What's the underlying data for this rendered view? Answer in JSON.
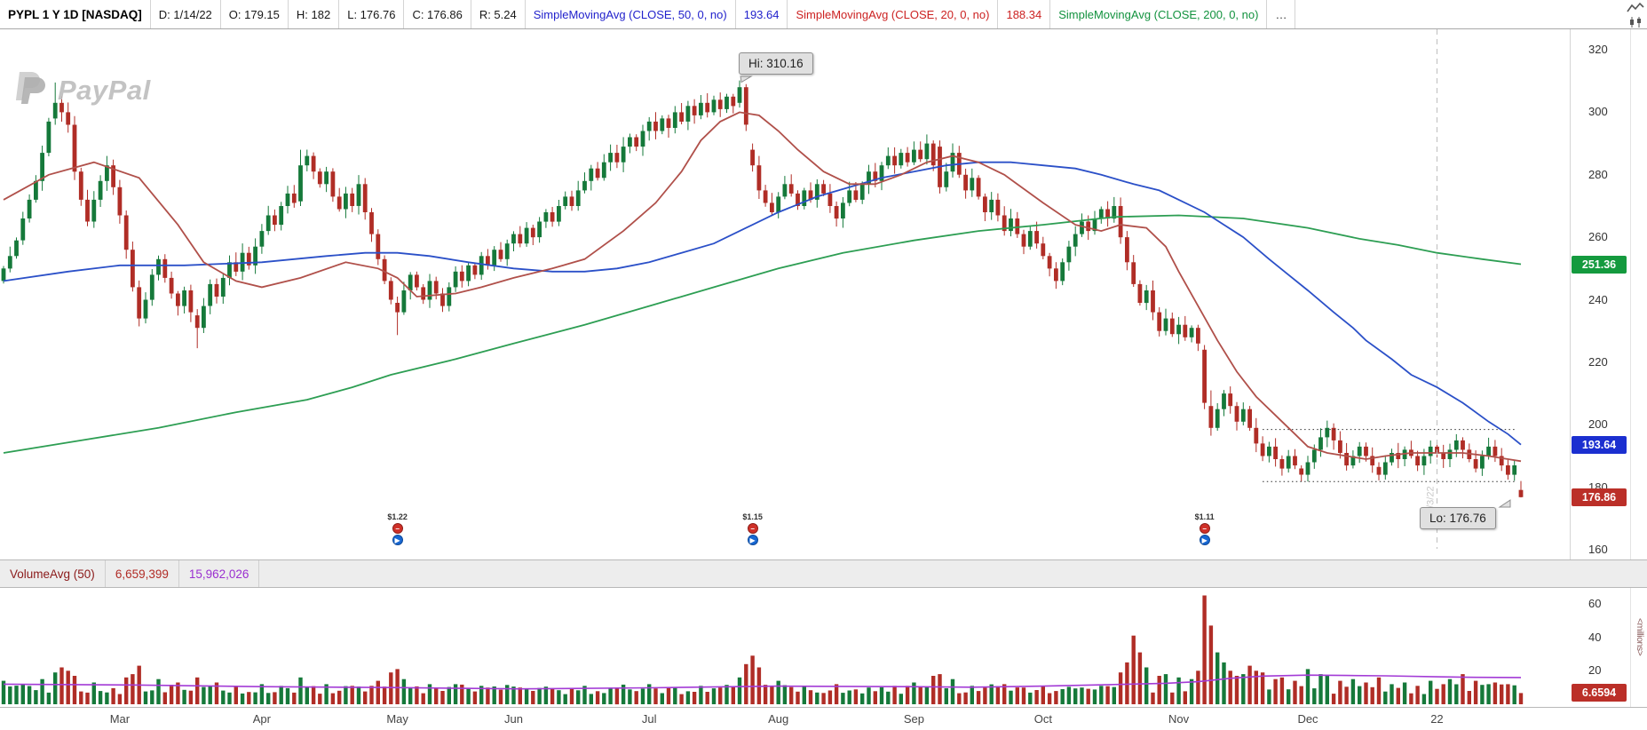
{
  "toolbar": {
    "items": [
      {
        "label": "PYPL 1 Y 1D [NASDAQ]",
        "color": "#000000",
        "bold": true
      },
      {
        "label": "D: 1/14/22",
        "color": "#181818"
      },
      {
        "label": "O: 179.15",
        "color": "#181818"
      },
      {
        "label": "H: 182",
        "color": "#181818"
      },
      {
        "label": "L: 176.76",
        "color": "#181818"
      },
      {
        "label": "C: 176.86",
        "color": "#181818"
      },
      {
        "label": "R: 5.24",
        "color": "#181818"
      },
      {
        "label": "SimpleMovingAvg (CLOSE, 50, 0, no)",
        "color": "#2222cc"
      },
      {
        "label": "193.64",
        "color": "#2222cc"
      },
      {
        "label": "SimpleMovingAvg (CLOSE, 20, 0, no)",
        "color": "#cc2222"
      },
      {
        "label": "188.34",
        "color": "#cc2222"
      },
      {
        "label": "SimpleMovingAvg (CLOSE, 200, 0, no)",
        "color": "#12923e"
      },
      {
        "label": "…",
        "color": "#333333"
      }
    ]
  },
  "watermark": {
    "text": "PayPal"
  },
  "chart_data": {
    "type": "candlestick",
    "symbol": "PYPL",
    "timeframe": "1 Y 1D",
    "exchange": "NASDAQ",
    "last": {
      "date": "1/14/22",
      "open": 179.15,
      "high": 182,
      "low": 176.76,
      "close": 176.86,
      "range": 5.24
    },
    "price_axis": {
      "ticks": [
        320,
        300,
        280,
        260,
        240,
        220,
        200,
        180,
        160
      ]
    },
    "x_axis": {
      "months": [
        {
          "label": "Mar",
          "day": 18
        },
        {
          "label": "Apr",
          "day": 40
        },
        {
          "label": "May",
          "day": 61
        },
        {
          "label": "Jun",
          "day": 79
        },
        {
          "label": "Jul",
          "day": 100
        },
        {
          "label": "Aug",
          "day": 120
        },
        {
          "label": "Sep",
          "day": 141
        },
        {
          "label": "Oct",
          "day": 161
        },
        {
          "label": "Nov",
          "day": 182
        },
        {
          "label": "Dec",
          "day": 202
        },
        {
          "label": "22",
          "day": 222
        }
      ]
    },
    "hi_annotation": {
      "label": "Hi: 310.16",
      "day": 114,
      "price": 310.16
    },
    "lo_annotation": {
      "label": "Lo: 176.76",
      "day": 235,
      "price": 176.76
    },
    "closes": [
      250,
      254,
      259,
      266,
      272,
      278,
      287,
      297,
      303,
      300,
      296,
      281,
      272,
      265,
      272,
      278,
      283,
      276,
      267,
      256,
      244,
      234,
      240,
      248,
      253,
      247,
      242,
      238,
      243,
      236,
      231,
      238,
      245,
      241,
      247,
      252,
      249,
      255,
      251,
      257,
      262,
      267,
      264,
      270,
      274,
      271,
      283,
      286,
      281,
      277,
      281,
      273,
      269,
      274,
      270,
      277,
      268,
      261,
      253,
      246,
      240,
      236,
      243,
      248,
      244,
      240,
      246,
      242,
      238,
      244,
      249,
      246,
      251,
      248,
      254,
      251,
      256,
      253,
      258,
      261,
      258,
      263,
      260,
      265,
      268,
      265,
      270,
      273,
      270,
      275,
      278,
      282,
      279,
      284,
      287,
      284,
      289,
      292,
      289,
      294,
      297,
      294,
      298,
      295,
      300,
      297,
      302,
      299,
      303,
      300,
      304,
      301,
      305,
      302,
      308,
      296,
      283,
      275,
      271,
      268,
      273,
      277,
      274,
      270,
      275,
      272,
      277,
      274,
      270,
      266,
      271,
      275,
      272,
      277,
      281,
      278,
      283,
      286,
      283,
      287,
      284,
      288,
      285,
      290,
      283,
      276,
      281,
      287,
      280,
      275,
      279,
      273,
      268,
      272,
      267,
      262,
      266,
      261,
      257,
      262,
      258,
      254,
      250,
      246,
      252,
      257,
      261,
      265,
      262,
      266,
      269,
      266,
      270,
      260,
      252,
      245,
      239,
      243,
      236,
      230,
      234,
      229,
      232,
      228,
      231,
      226,
      207,
      199,
      205,
      210,
      206,
      201,
      205,
      199,
      194,
      190,
      193,
      189,
      186,
      190,
      187,
      184,
      188,
      192,
      196,
      199,
      195,
      191,
      187,
      190,
      193,
      190,
      187,
      184,
      188,
      191,
      189,
      192,
      190,
      187,
      190,
      193,
      191,
      189,
      192,
      195,
      192,
      189,
      186,
      190,
      193,
      190,
      187,
      184,
      187,
      176.86
    ],
    "special_candles": {
      "8": [
        298,
        309.5,
        296,
        303
      ],
      "30": [
        235,
        237,
        224.5,
        231
      ],
      "46": [
        271.5,
        288,
        270,
        283
      ],
      "61": [
        239,
        241,
        228.7,
        236
      ],
      "114": [
        303,
        310.16,
        301.5,
        308
      ],
      "115": [
        308,
        309,
        294,
        296
      ],
      "116": [
        288,
        290,
        281,
        283
      ],
      "145": [
        289,
        291,
        274,
        276
      ],
      "186": [
        224,
        225.5,
        205,
        207
      ],
      "187": [
        206,
        211,
        196.5,
        199
      ],
      "201": [
        186,
        187,
        181.8,
        184
      ],
      "213": [
        186.5,
        188,
        182.2,
        184
      ],
      "235": [
        179.15,
        182,
        176.76,
        176.86
      ]
    },
    "overlays": [
      {
        "name": "SMA200",
        "color": "#2d9e53",
        "value": 251.36,
        "points": [
          [
            0,
            191
          ],
          [
            12,
            195
          ],
          [
            24,
            199
          ],
          [
            36,
            204
          ],
          [
            47,
            208
          ],
          [
            54,
            212
          ],
          [
            60,
            216
          ],
          [
            70,
            221
          ],
          [
            79,
            226
          ],
          [
            90,
            232
          ],
          [
            100,
            238
          ],
          [
            110,
            244
          ],
          [
            120,
            250
          ],
          [
            130,
            255
          ],
          [
            141,
            259
          ],
          [
            151,
            262
          ],
          [
            161,
            264
          ],
          [
            172,
            266.5
          ],
          [
            182,
            267
          ],
          [
            192,
            266
          ],
          [
            202,
            263
          ],
          [
            210,
            259.5
          ],
          [
            216,
            257.5
          ],
          [
            222,
            255
          ],
          [
            229,
            253
          ],
          [
            235,
            251.36
          ]
        ]
      },
      {
        "name": "SMA50",
        "color": "#2b50c8",
        "value": 193.64,
        "points": [
          [
            0,
            246
          ],
          [
            10,
            249
          ],
          [
            18,
            251
          ],
          [
            28,
            251
          ],
          [
            40,
            252
          ],
          [
            50,
            254
          ],
          [
            56,
            255
          ],
          [
            61,
            255
          ],
          [
            66,
            254
          ],
          [
            72,
            252
          ],
          [
            79,
            250
          ],
          [
            85,
            249
          ],
          [
            90,
            249
          ],
          [
            95,
            250
          ],
          [
            100,
            252
          ],
          [
            105,
            255
          ],
          [
            110,
            258
          ],
          [
            115,
            263
          ],
          [
            120,
            268
          ],
          [
            126,
            273
          ],
          [
            131,
            276
          ],
          [
            136,
            279
          ],
          [
            141,
            281
          ],
          [
            146,
            283
          ],
          [
            151,
            284
          ],
          [
            156,
            284
          ],
          [
            161,
            283
          ],
          [
            166,
            282
          ],
          [
            170,
            280
          ],
          [
            175,
            277
          ],
          [
            179,
            275
          ],
          [
            182,
            272
          ],
          [
            186,
            268
          ],
          [
            189,
            264
          ],
          [
            192,
            260
          ],
          [
            196,
            253
          ],
          [
            199,
            248
          ],
          [
            202,
            243
          ],
          [
            206,
            236
          ],
          [
            209,
            231
          ],
          [
            211,
            227
          ],
          [
            215,
            221
          ],
          [
            218,
            216
          ],
          [
            222,
            212
          ],
          [
            226,
            207
          ],
          [
            230,
            201
          ],
          [
            233,
            197
          ],
          [
            235,
            193.64
          ]
        ]
      },
      {
        "name": "SMA20",
        "color": "#b0504a",
        "value": 188.34,
        "points": [
          [
            0,
            272
          ],
          [
            7,
            280
          ],
          [
            14,
            284
          ],
          [
            21,
            279
          ],
          [
            27,
            264
          ],
          [
            31,
            252
          ],
          [
            36,
            246
          ],
          [
            40,
            244
          ],
          [
            46,
            247
          ],
          [
            53,
            252
          ],
          [
            58,
            250
          ],
          [
            61,
            247
          ],
          [
            64,
            241
          ],
          [
            70,
            242
          ],
          [
            74,
            244
          ],
          [
            79,
            247
          ],
          [
            85,
            250
          ],
          [
            90,
            253
          ],
          [
            96,
            262
          ],
          [
            101,
            271
          ],
          [
            105,
            281
          ],
          [
            108,
            291
          ],
          [
            111,
            297
          ],
          [
            114,
            300
          ],
          [
            117,
            299
          ],
          [
            120,
            294
          ],
          [
            123,
            288
          ],
          [
            127,
            281
          ],
          [
            131,
            277
          ],
          [
            135,
            277
          ],
          [
            139,
            280
          ],
          [
            143,
            284
          ],
          [
            147,
            286
          ],
          [
            151,
            284
          ],
          [
            155,
            280
          ],
          [
            161,
            271
          ],
          [
            166,
            264
          ],
          [
            170,
            262
          ],
          [
            173,
            264
          ],
          [
            177,
            263
          ],
          [
            180,
            257
          ],
          [
            182,
            249
          ],
          [
            185,
            238
          ],
          [
            188,
            227
          ],
          [
            191,
            217
          ],
          [
            194,
            209
          ],
          [
            197,
            203
          ],
          [
            200,
            197
          ],
          [
            202,
            193
          ],
          [
            205,
            191
          ],
          [
            208,
            190
          ],
          [
            211,
            189
          ],
          [
            214,
            190
          ],
          [
            218,
            191
          ],
          [
            222,
            191
          ],
          [
            226,
            191
          ],
          [
            230,
            190
          ],
          [
            233,
            189
          ],
          [
            235,
            188.34
          ]
        ]
      }
    ],
    "support_resistance": [
      {
        "price": 198.5,
        "from_day": 195,
        "to_day": 234
      },
      {
        "price": 181.8,
        "from_day": 195,
        "to_day": 234
      }
    ],
    "year_divider": {
      "day": 222,
      "label": "1/3/22"
    },
    "earnings_markers": [
      {
        "day": 61,
        "eps": "$1.22"
      },
      {
        "day": 116,
        "eps": "$1.15"
      },
      {
        "day": 186,
        "eps": "$1.11"
      }
    ],
    "marker_icons": {
      "top": "earnings",
      "top_glyph": "−",
      "bottom": "webcast",
      "bottom_glyph": "▶"
    },
    "price_badges": [
      {
        "name": "sma200-badge",
        "value": "251.36",
        "price": 251.36,
        "color": "#149a3e"
      },
      {
        "name": "sma50-badge",
        "value": "193.64",
        "price": 193.64,
        "color": "#1b2fd0"
      },
      {
        "name": "last-price-badge",
        "value": "176.86",
        "price": 176.86,
        "color": "#bb2f28"
      }
    ],
    "volume": {
      "label": "VolumeAvg (50)",
      "value_red": "6,659,399",
      "value_purple": "15,962,026",
      "axis_ticks": [
        60,
        40,
        20
      ],
      "badge": {
        "value": "6.6594",
        "price": 6.6594,
        "color": "#bb2f28"
      },
      "unit_label": "<millions>",
      "avg_line_points": [
        [
          0,
          12
        ],
        [
          20,
          11.5
        ],
        [
          40,
          10.5
        ],
        [
          60,
          10
        ],
        [
          80,
          9.2
        ],
        [
          100,
          9.8
        ],
        [
          120,
          10.8
        ],
        [
          140,
          10.5
        ],
        [
          150,
          10.2
        ],
        [
          161,
          10.8
        ],
        [
          172,
          11.8
        ],
        [
          180,
          12.5
        ],
        [
          185,
          13.5
        ],
        [
          190,
          15.5
        ],
        [
          195,
          16.8
        ],
        [
          202,
          17.4
        ],
        [
          208,
          17.2
        ],
        [
          214,
          17
        ],
        [
          222,
          16.4
        ],
        [
          228,
          16.1
        ],
        [
          235,
          15.96
        ]
      ],
      "spikes": {
        "0": 14,
        "3": 12,
        "6": 15,
        "8": 19,
        "9": 22,
        "10": 20,
        "11": 17,
        "14": 13,
        "19": 16,
        "20": 18,
        "21": 23,
        "24": 15,
        "27": 13,
        "30": 16,
        "33": 13,
        "36": 11,
        "40": 12,
        "43": 11,
        "46": 16,
        "50": 12,
        "54": 11,
        "58": 14,
        "60": 19,
        "61": 21,
        "62": 15,
        "66": 12,
        "70": 12,
        "75": 10,
        "80": 10,
        "85": 9,
        "90": 11,
        "95": 10,
        "100": 12,
        "104": 10,
        "108": 11,
        "111": 10,
        "114": 16,
        "115": 24,
        "116": 29,
        "117": 22,
        "120": 14,
        "124": 11,
        "129": 12,
        "134": 10,
        "138": 11,
        "141": 13,
        "144": 17,
        "145": 18,
        "147": 15,
        "150": 11,
        "155": 12,
        "158": 10,
        "161": 11,
        "164": 9,
        "167": 10,
        "170": 11,
        "173": 19,
        "174": 25,
        "175": 41,
        "176": 31,
        "177": 22,
        "179": 17,
        "180": 18,
        "182": 16,
        "184": 15,
        "185": 20,
        "186": 65,
        "187": 47,
        "188": 31,
        "189": 25,
        "190": 20,
        "191": 17,
        "192": 18,
        "193": 23,
        "194": 20,
        "195": 19,
        "197": 15,
        "198": 16,
        "200": 14,
        "202": 21,
        "204": 18,
        "205": 17,
        "207": 14,
        "209": 15,
        "211": 13,
        "213": 16,
        "215": 12,
        "217": 13,
        "219": 11,
        "221": 14,
        "223": 12,
        "224": 15,
        "226": 18,
        "228": 14,
        "230": 12,
        "231": 13,
        "233": 12,
        "235": 6.66
      }
    }
  }
}
